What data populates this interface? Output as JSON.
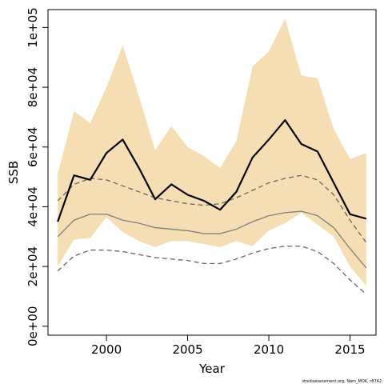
{
  "chart_data": {
    "type": "line",
    "xlabel": "Year",
    "ylabel": "SSB",
    "xlim": [
      1996.4,
      2016.6
    ],
    "ylim": [
      -3000,
      106000
    ],
    "x_ticks": [
      2000,
      2005,
      2010,
      2015
    ],
    "x_tick_labels": [
      "2000",
      "2005",
      "2010",
      "2015"
    ],
    "y_ticks": [
      0,
      20000,
      40000,
      60000,
      80000,
      100000
    ],
    "y_tick_labels": [
      "0e+00",
      "2e+04",
      "4e+04",
      "6e+04",
      "8e+04",
      "1e+05"
    ],
    "x": [
      1997,
      1998,
      1999,
      2000,
      2001,
      2002,
      2003,
      2004,
      2005,
      2006,
      2007,
      2008,
      2009,
      2010,
      2011,
      2012,
      2013,
      2014,
      2015,
      2016
    ],
    "band": {
      "name": "",
      "color": "#f5deb3",
      "upper": [
        51000,
        72000,
        68000,
        80000,
        94000,
        77000,
        59000,
        67000,
        60000,
        57000,
        53000,
        62000,
        87000,
        92000,
        103000,
        84000,
        83000,
        66000,
        56000,
        58000
      ],
      "lower": [
        20000,
        29000,
        29500,
        36500,
        31500,
        28500,
        26500,
        28500,
        28500,
        27500,
        26500,
        28500,
        26800,
        32000,
        34500,
        38000,
        34000,
        30000,
        20000,
        13500
      ]
    },
    "series": [
      {
        "name": "",
        "style": "solid",
        "color": "#000000",
        "width": 2.2,
        "values": [
          35000,
          50500,
          49000,
          58000,
          62500,
          53000,
          42500,
          47500,
          44000,
          42000,
          39000,
          45000,
          56500,
          62500,
          69000,
          61000,
          58500,
          48000,
          37500,
          36000
        ]
      },
      {
        "name": "",
        "style": "solid",
        "color": "#7f7f7f",
        "width": 1.3,
        "values": [
          30000,
          35500,
          37500,
          37500,
          35500,
          34500,
          33000,
          32500,
          32000,
          31000,
          31000,
          32500,
          35000,
          37000,
          38000,
          38500,
          37000,
          33000,
          26000,
          19500
        ]
      },
      {
        "name": "",
        "style": "dashed",
        "color": "#666666",
        "width": 1.3,
        "values": [
          42000,
          47500,
          49500,
          49000,
          47000,
          45000,
          43000,
          42000,
          41000,
          40500,
          41000,
          43000,
          45500,
          48000,
          49500,
          50500,
          49000,
          44000,
          35500,
          28000
        ]
      },
      {
        "name": "",
        "style": "dashed",
        "color": "#666666",
        "width": 1.3,
        "values": [
          18500,
          23500,
          25500,
          25500,
          25000,
          24000,
          23000,
          22500,
          22000,
          21000,
          21000,
          22500,
          24500,
          26000,
          26800,
          26800,
          25000,
          21000,
          15500,
          10700
        ]
      }
    ],
    "grid": false,
    "legend": "none"
  },
  "footnote": "stockassessment.org, Nam_MOK, r8742"
}
